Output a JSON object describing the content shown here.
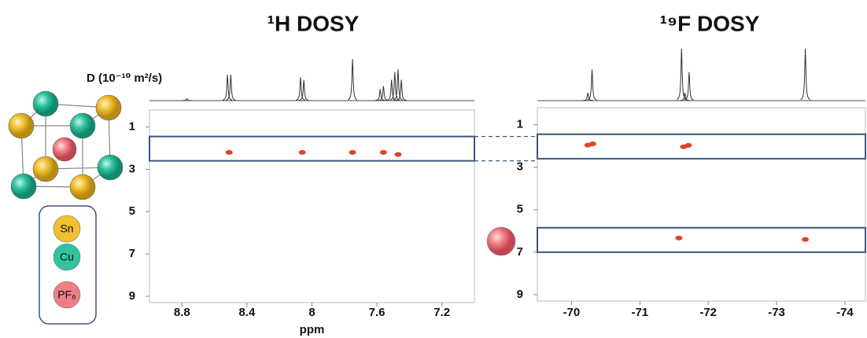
{
  "key": {
    "items": [
      {
        "label": "Sn",
        "color": "#f0c030"
      },
      {
        "label": "Cu",
        "color": "#2fc3a0"
      },
      {
        "label": "PF₆",
        "color": "#ef7f86"
      }
    ]
  },
  "chart_data": [
    {
      "type": "scatter",
      "title": "¹H DOSY",
      "ylabel": "D (10⁻¹⁰ m²/s)",
      "xlabel": "ppm",
      "x": [
        8.51,
        8.06,
        7.75,
        7.56,
        7.47
      ],
      "y": [
        2.2,
        2.2,
        2.2,
        2.2,
        2.3
      ],
      "color": "#d9442a",
      "xlim": [
        9.0,
        7.0
      ],
      "xticks": [
        8.8,
        8.4,
        8.0,
        7.6,
        7.2
      ],
      "ylim": [
        0.2,
        9.3
      ],
      "yticks": [
        1,
        3,
        5,
        7,
        9
      ],
      "highlight_ranges": [
        [
          1.45,
          2.6
        ]
      ],
      "spectrum": {
        "peaks": [
          8.77,
          8.52,
          8.5,
          8.07,
          8.05,
          7.75,
          7.58,
          7.56,
          7.51,
          7.49,
          7.47,
          7.45
        ],
        "heights": [
          0.04,
          0.5,
          0.5,
          0.45,
          0.4,
          0.8,
          0.22,
          0.28,
          0.4,
          0.55,
          0.6,
          0.4
        ]
      }
    },
    {
      "type": "scatter",
      "title": "¹⁹F DOSY",
      "x": [
        -70.24,
        -70.31,
        -71.64,
        -71.71,
        -71.57,
        -73.42
      ],
      "y": [
        1.96,
        1.9,
        2.04,
        1.97,
        6.33,
        6.4
      ],
      "color": "#d9442a",
      "xlim": [
        -69.5,
        -74.3
      ],
      "xticks": [
        -70,
        -71,
        -72,
        -73,
        -74
      ],
      "ylim": [
        0.2,
        9.3
      ],
      "yticks": [
        1,
        3,
        5,
        7,
        9
      ],
      "highlight_ranges": [
        [
          1.45,
          2.6
        ],
        [
          5.85,
          7.0
        ]
      ],
      "spectrum": {
        "peaks": [
          -70.24,
          -70.3,
          -71.61,
          -71.66,
          -71.72,
          -73.42
        ],
        "heights": [
          0.15,
          0.6,
          1.0,
          0.15,
          0.55,
          1.0
        ]
      }
    }
  ]
}
